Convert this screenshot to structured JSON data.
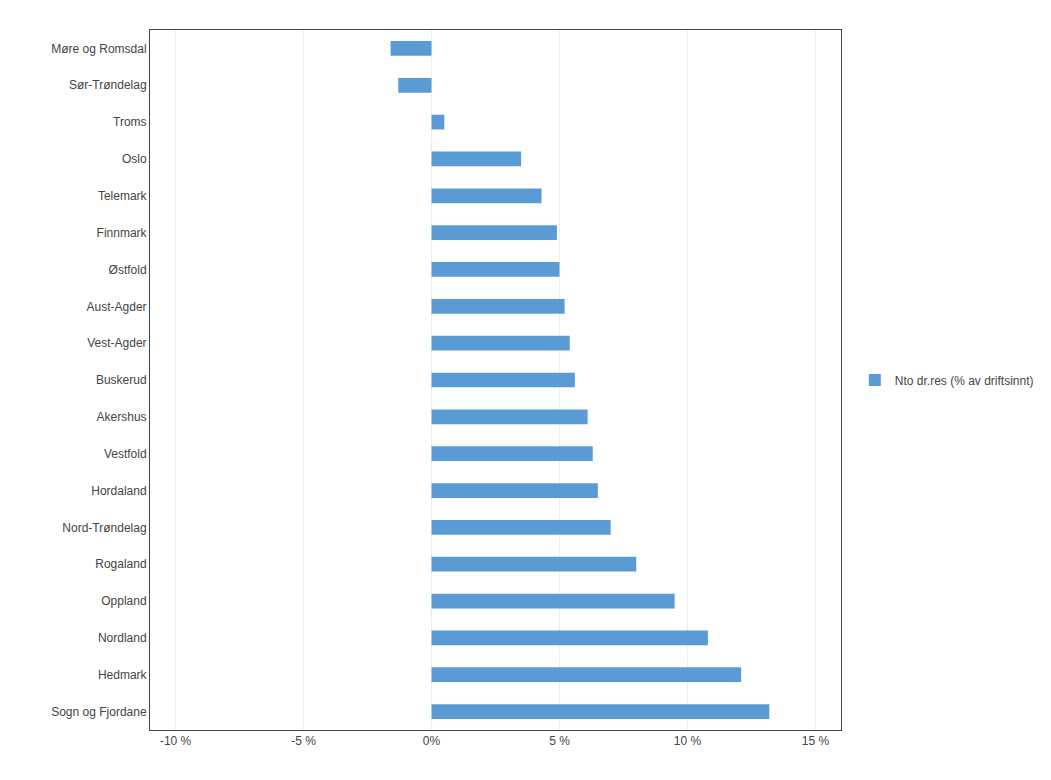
{
  "chart_data": {
    "type": "bar",
    "orientation": "horizontal",
    "categories": [
      "Sogn og Fjordane",
      "Hedmark",
      "Nordland",
      "Oppland",
      "Rogaland",
      "Nord-Trøndelag",
      "Hordaland",
      "Vestfold",
      "Akershus",
      "Buskerud",
      "Vest-Agder",
      "Aust-Agder",
      "Østfold",
      "Finnmark",
      "Telemark",
      "Oslo",
      "Troms",
      "Sør-Trøndelag",
      "Møre og Romsdal"
    ],
    "series": [
      {
        "name": "Nto dr.res (% av driftsinnt)",
        "color": "#5B9BD5",
        "values": [
          13.2,
          12.1,
          10.8,
          9.5,
          8.0,
          7.0,
          6.5,
          6.3,
          6.1,
          5.6,
          5.4,
          5.2,
          5.0,
          4.9,
          4.3,
          3.5,
          0.5,
          -1.3,
          -1.6
        ]
      }
    ],
    "xlim": [
      -11,
      16
    ],
    "xticks": [
      {
        "value": -10,
        "label": "-10 %"
      },
      {
        "value": -5,
        "label": "-5 %"
      },
      {
        "value": 0,
        "label": "0%"
      },
      {
        "value": 5,
        "label": "5 %"
      },
      {
        "value": 10,
        "label": "10 %"
      },
      {
        "value": 15,
        "label": "15 %"
      }
    ],
    "grid": true,
    "legend": "right"
  }
}
